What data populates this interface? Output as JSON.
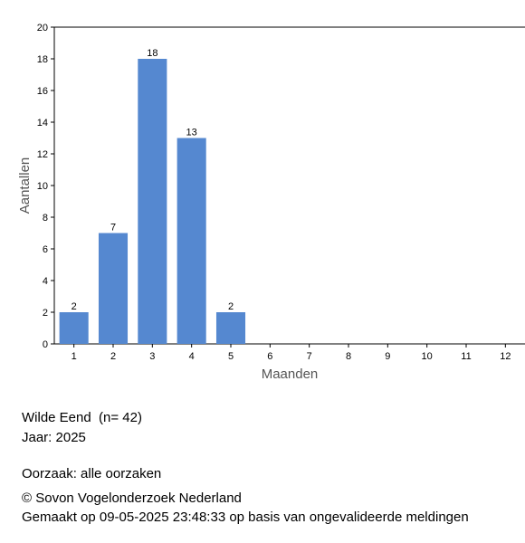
{
  "chart_data": {
    "type": "bar",
    "x_label": "Maanden",
    "y_label": "Aantallen",
    "categories": [
      "1",
      "2",
      "3",
      "4",
      "5",
      "6",
      "7",
      "8",
      "9",
      "10",
      "11",
      "12"
    ],
    "values": [
      2,
      7,
      18,
      13,
      2,
      null,
      null,
      null,
      null,
      null,
      null,
      null
    ],
    "color": "#5588d0",
    "ylim": [
      0,
      20
    ],
    "yticks": [
      0,
      2,
      4,
      6,
      8,
      10,
      12,
      14,
      16,
      18,
      20
    ],
    "grid": false
  },
  "footer": {
    "species": "Wilde Eend  (n= 42)",
    "year": "Jaar: 2025",
    "cause": "Oorzaak: alle oorzaken",
    "copyright": "© Sovon Vogelonderzoek Nederland",
    "made": "Gemaakt op 09-05-2025 23:48:33 op basis van ongevalideerde meldingen"
  }
}
